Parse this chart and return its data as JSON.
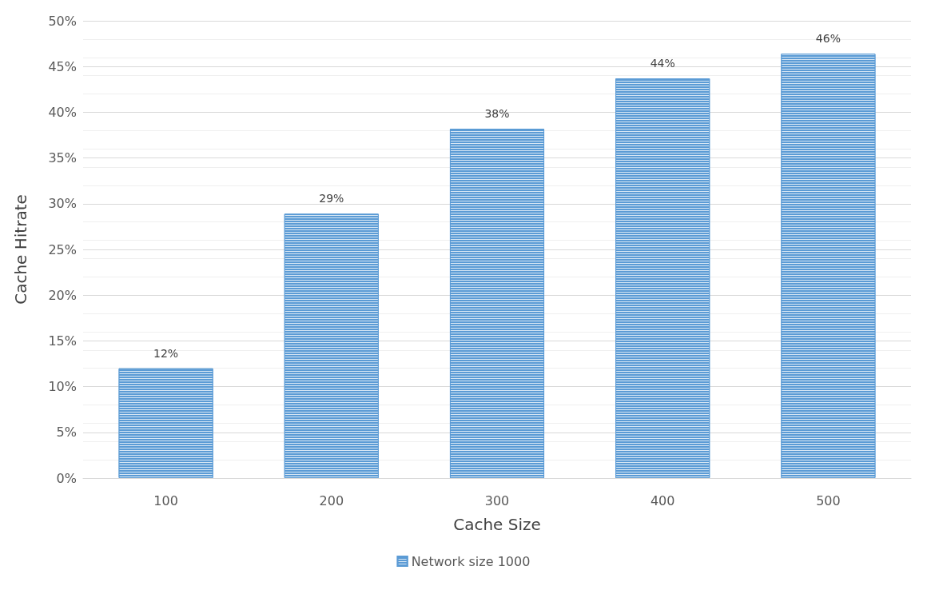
{
  "chart_data": {
    "type": "bar",
    "xlabel": "Cache Size",
    "ylabel": "Cache Hitrate",
    "categories": [
      "100",
      "200",
      "300",
      "400",
      "500"
    ],
    "series": [
      {
        "name": "Network size 1000",
        "color": "#5b9bd5",
        "values": [
          12,
          28.9,
          38.2,
          43.7,
          46.4
        ],
        "value_labels": [
          "12%",
          "29%",
          "38%",
          "44%",
          "46%"
        ]
      }
    ],
    "ylim": [
      0,
      50
    ],
    "yticks": [
      {
        "value": 0,
        "label": "0%"
      },
      {
        "value": 5,
        "label": "5%"
      },
      {
        "value": 10,
        "label": "10%"
      },
      {
        "value": 15,
        "label": "15%"
      },
      {
        "value": 20,
        "label": "20%"
      },
      {
        "value": 25,
        "label": "25%"
      },
      {
        "value": 30,
        "label": "30%"
      },
      {
        "value": 35,
        "label": "35%"
      },
      {
        "value": 40,
        "label": "40%"
      },
      {
        "value": 45,
        "label": "45%"
      },
      {
        "value": 50,
        "label": "50%"
      }
    ],
    "grid": "y",
    "legend": "bottom"
  }
}
